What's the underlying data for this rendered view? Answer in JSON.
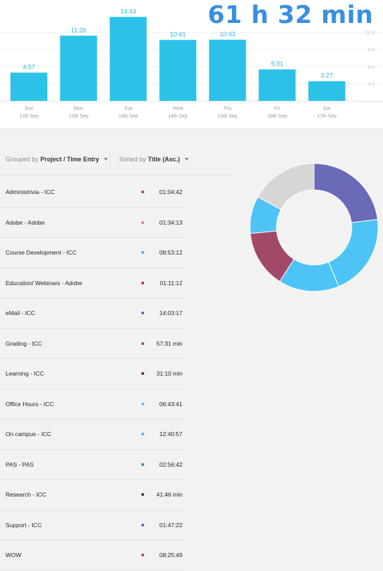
{
  "summary": {
    "total": "61 h 32 min"
  },
  "chart_data": {
    "type": "bar",
    "categories": [
      "Sun",
      "Mon",
      "Tue",
      "Wed",
      "Thu",
      "Fri",
      "Sat"
    ],
    "dates": [
      "11th Sep",
      "12th Sep",
      "13th Sep",
      "14th Sep",
      "15th Sep",
      "16th Sep",
      "17th Sep"
    ],
    "value_labels": [
      "4:57",
      "11:26",
      "14:43",
      "10:41",
      "10:43",
      "5:31",
      "3:27"
    ],
    "values": [
      4.95,
      11.43,
      14.72,
      10.68,
      10.72,
      5.52,
      3.45
    ],
    "y_ticks": [
      "12 h",
      "9 h",
      "6 h",
      "3 h"
    ],
    "y_tick_values": [
      12,
      9,
      6,
      3
    ],
    "ylim": [
      0,
      15
    ],
    "grid": true,
    "bar_color": "#2cc2e8"
  },
  "controls": {
    "group_prefix": "Grouped by",
    "group_value": "Project / Time Entry",
    "sort_prefix": "Sorted by",
    "sort_value": "Title (Asc.)"
  },
  "projects": [
    {
      "title": "Administrivia - ICC",
      "duration": "01:04:42",
      "color": "#b03a5a"
    },
    {
      "title": "Adobe - Adobe",
      "duration": "01:34:13",
      "color": "#e07a9a"
    },
    {
      "title": "Course Development - ICC",
      "duration": "08:53:12",
      "color": "#3fb6e8"
    },
    {
      "title": "Education/ Webinars - Adobe",
      "duration": "01:11:12",
      "color": "#c0282f"
    },
    {
      "title": "eMail - ICC",
      "duration": "14:03:17",
      "color": "#6a5ab8"
    },
    {
      "title": "Grading - ICC",
      "duration": "57:31 min",
      "color": "#a2456a"
    },
    {
      "title": "Learning - ICC",
      "duration": "31:10 min",
      "color": "#6b2020"
    },
    {
      "title": "Office Hours - ICC",
      "duration": "06:43:41",
      "color": "#4ec3f0"
    },
    {
      "title": "On campus - ICC",
      "duration": "12:40:57",
      "color": "#48bff0"
    },
    {
      "title": "PAS - PAS",
      "duration": "02:56:42",
      "color": "#2c88b8"
    },
    {
      "title": "Research - ICC",
      "duration": "41:46 min",
      "color": "#1e3a5a"
    },
    {
      "title": "Support - ICC",
      "duration": "01:47:22",
      "color": "#6a5ab8"
    },
    {
      "title": "WOW",
      "duration": "08:25:49",
      "color": "#a2456a"
    }
  ],
  "donut": {
    "segments": [
      {
        "value": 23,
        "color": "#6a6ab8"
      },
      {
        "value": 20.7,
        "color": "#4ec3f6"
      },
      {
        "value": 15.3,
        "color": "#4ec3f6"
      },
      {
        "value": 14.5,
        "color": "#a24868"
      },
      {
        "value": 9.4,
        "color": "#4ec3f6"
      },
      {
        "value": 17.1,
        "color": "#d6d6d6"
      }
    ]
  }
}
